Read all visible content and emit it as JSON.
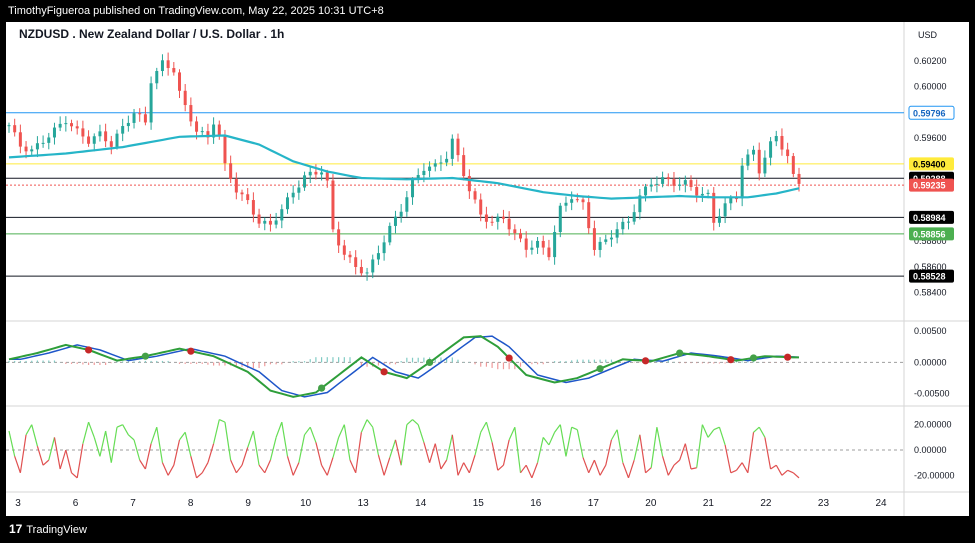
{
  "header": {
    "text": "TimothyFigueroa published on TradingView.com, May 22, 2025 10:31 UTC+8"
  },
  "footer": {
    "logo": "17",
    "brand": "TradingView"
  },
  "chart_data": {
    "type": "candlestick",
    "title": "NZDUSD . New Zealand Dollar / U.S. Dollar . 1h",
    "currency": "USD",
    "x_labels": [
      "3",
      "6",
      "7",
      "8",
      "9",
      "10",
      "13",
      "14",
      "15",
      "16",
      "17",
      "20",
      "21",
      "22",
      "23",
      "24"
    ],
    "price_axis": {
      "min": 0.5825,
      "max": 0.6033,
      "ticks": [
        "0.60200",
        "0.60000",
        "0.59600",
        "0.58800",
        "0.58600",
        "0.58400"
      ]
    },
    "price_path": [
      [
        0,
        0.597
      ],
      [
        2,
        0.5954
      ],
      [
        4,
        0.595
      ],
      [
        7,
        0.5962
      ],
      [
        10,
        0.5974
      ],
      [
        12,
        0.5965
      ],
      [
        14,
        0.5958
      ],
      [
        16,
        0.5963
      ],
      [
        18,
        0.5955
      ],
      [
        20,
        0.5968
      ],
      [
        22,
        0.598
      ],
      [
        24,
        0.5972
      ],
      [
        25,
        0.6005
      ],
      [
        27,
        0.6018
      ],
      [
        29,
        0.6013
      ],
      [
        30,
        0.5995
      ],
      [
        31,
        0.5984
      ],
      [
        33,
        0.5966
      ],
      [
        35,
        0.596
      ],
      [
        36,
        0.5973
      ],
      [
        37,
        0.5962
      ],
      [
        38,
        0.5938
      ],
      [
        40,
        0.592
      ],
      [
        42,
        0.591
      ],
      [
        44,
        0.5895
      ],
      [
        46,
        0.5892
      ],
      [
        48,
        0.5905
      ],
      [
        50,
        0.5918
      ],
      [
        52,
        0.593
      ],
      [
        55,
        0.5935
      ],
      [
        56,
        0.5925
      ],
      [
        57,
        0.5888
      ],
      [
        59,
        0.587
      ],
      [
        61,
        0.586
      ],
      [
        63,
        0.5855
      ],
      [
        65,
        0.5872
      ],
      [
        67,
        0.589
      ],
      [
        69,
        0.5905
      ],
      [
        71,
        0.5925
      ],
      [
        73,
        0.5937
      ],
      [
        75,
        0.5938
      ],
      [
        77,
        0.5946
      ],
      [
        78,
        0.5958
      ],
      [
        79,
        0.5945
      ],
      [
        81,
        0.592
      ],
      [
        83,
        0.59
      ],
      [
        85,
        0.5895
      ],
      [
        87,
        0.5898
      ],
      [
        89,
        0.5885
      ],
      [
        91,
        0.5875
      ],
      [
        93,
        0.5878
      ],
      [
        95,
        0.587
      ],
      [
        97,
        0.5905
      ],
      [
        99,
        0.5915
      ],
      [
        101,
        0.5908
      ],
      [
        103,
        0.5875
      ],
      [
        105,
        0.588
      ],
      [
        107,
        0.589
      ],
      [
        109,
        0.5895
      ],
      [
        111,
        0.5915
      ],
      [
        113,
        0.5925
      ],
      [
        115,
        0.5928
      ],
      [
        117,
        0.5925
      ],
      [
        119,
        0.5925
      ],
      [
        121,
        0.5918
      ],
      [
        123,
        0.5915
      ],
      [
        124,
        0.5895
      ],
      [
        126,
        0.5908
      ],
      [
        128,
        0.5915
      ],
      [
        129,
        0.594
      ],
      [
        131,
        0.595
      ],
      [
        132,
        0.5935
      ],
      [
        134,
        0.5955
      ],
      [
        135,
        0.5962
      ],
      [
        137,
        0.5945
      ],
      [
        138,
        0.593
      ],
      [
        139,
        0.5926
      ]
    ],
    "total_bars": 140,
    "ma_path": [
      [
        0,
        0.5945
      ],
      [
        10,
        0.5948
      ],
      [
        20,
        0.5953
      ],
      [
        30,
        0.5961
      ],
      [
        38,
        0.5962
      ],
      [
        44,
        0.5955
      ],
      [
        50,
        0.5942
      ],
      [
        56,
        0.5934
      ],
      [
        62,
        0.5929
      ],
      [
        70,
        0.5928
      ],
      [
        78,
        0.5929
      ],
      [
        86,
        0.5925
      ],
      [
        94,
        0.5918
      ],
      [
        100,
        0.5915
      ],
      [
        106,
        0.5913
      ],
      [
        112,
        0.5914
      ],
      [
        118,
        0.5915
      ],
      [
        124,
        0.5914
      ],
      [
        130,
        0.5914
      ],
      [
        135,
        0.5917
      ],
      [
        139,
        0.5921
      ]
    ],
    "horizontal_levels": [
      {
        "label": "0.59796",
        "value": 0.59796,
        "color": "#2196f3",
        "text_color": "#1565c0",
        "box_fill": "#ffffff"
      },
      {
        "label": "0.59400",
        "value": 0.594,
        "color": "#ffeb3b",
        "text_color": "#000000",
        "box_fill": "#ffeb3b"
      },
      {
        "label": "0.59288",
        "value": 0.59288,
        "color": "#ffffff",
        "text_color": "#ffffff",
        "box_fill": "#000000"
      },
      {
        "label": "0.59235",
        "value": 0.59235,
        "color": "#ef5350",
        "text_color": "#ffffff",
        "box_fill": "#ef5350"
      },
      {
        "label": "0.58984",
        "value": 0.58984,
        "color": "#ffffff",
        "text_color": "#ffffff",
        "box_fill": "#000000"
      },
      {
        "label": "0.58856",
        "value": 0.58856,
        "color": "#4caf50",
        "text_color": "#ffffff",
        "box_fill": "#4caf50"
      },
      {
        "label": "0.58528",
        "value": 0.58528,
        "color": "#ffffff",
        "text_color": "#ffffff",
        "box_fill": "#000000"
      }
    ],
    "macd": {
      "ticks": [
        "0.00500",
        "0.00000",
        "-0.00500"
      ],
      "range": [
        -0.006,
        0.0055
      ],
      "path": [
        [
          0,
          0.0005
        ],
        [
          5,
          0.0015
        ],
        [
          10,
          0.0028
        ],
        [
          14,
          0.002
        ],
        [
          19,
          0.0003
        ],
        [
          24,
          0.001
        ],
        [
          30,
          0.0022
        ],
        [
          36,
          0.001
        ],
        [
          42,
          -0.0015
        ],
        [
          46,
          -0.0045
        ],
        [
          50,
          -0.0055
        ],
        [
          54,
          -0.0048
        ],
        [
          58,
          -0.002
        ],
        [
          62,
          0.0008
        ],
        [
          66,
          -0.0015
        ],
        [
          70,
          -0.0025
        ],
        [
          74,
          0.0
        ],
        [
          80,
          0.004
        ],
        [
          83,
          0.0042
        ],
        [
          86,
          0.0025
        ],
        [
          91,
          -0.002
        ],
        [
          96,
          -0.0032
        ],
        [
          100,
          -0.0025
        ],
        [
          104,
          -0.001
        ],
        [
          108,
          0.0005
        ],
        [
          113,
          0.0002
        ],
        [
          118,
          0.0015
        ],
        [
          123,
          0.001
        ],
        [
          128,
          0.0003
        ],
        [
          133,
          0.001
        ],
        [
          138,
          0.0008
        ]
      ],
      "dots": [
        {
          "i": 14,
          "c": "#c62828"
        },
        {
          "i": 24,
          "c": "#43a047"
        },
        {
          "i": 32,
          "c": "#c62828"
        },
        {
          "i": 55,
          "c": "#43a047"
        },
        {
          "i": 66,
          "c": "#c62828"
        },
        {
          "i": 74,
          "c": "#43a047"
        },
        {
          "i": 88,
          "c": "#c62828"
        },
        {
          "i": 104,
          "c": "#43a047"
        },
        {
          "i": 112,
          "c": "#c62828"
        },
        {
          "i": 118,
          "c": "#43a047"
        },
        {
          "i": 127,
          "c": "#c62828"
        },
        {
          "i": 131,
          "c": "#43a047"
        },
        {
          "i": 137,
          "c": "#c62828"
        }
      ]
    },
    "oscillator": {
      "ticks": [
        "20.00000",
        "0.00000",
        "-20.00000"
      ],
      "range": [
        -30,
        30
      ],
      "values": [
        15,
        -5,
        -18,
        12,
        20,
        3,
        -12,
        -8,
        10,
        -15,
        0,
        -18,
        -22,
        5,
        22,
        10,
        -5,
        15,
        -10,
        18,
        20,
        12,
        8,
        -8,
        -15,
        5,
        18,
        -10,
        -20,
        -12,
        8,
        14,
        -5,
        -22,
        -18,
        -10,
        5,
        24,
        22,
        -8,
        -18,
        -12,
        2,
        15,
        -12,
        -18,
        -8,
        10,
        22,
        -5,
        -20,
        -10,
        12,
        18,
        6,
        -12,
        -20,
        -6,
        10,
        20,
        -8,
        -18,
        14,
        24,
        18,
        -4,
        -20,
        -6,
        8,
        -12,
        20,
        24,
        20,
        6,
        -10,
        5,
        -15,
        -8,
        12,
        -20,
        -10,
        -18,
        -4,
        14,
        22,
        6,
        -16,
        -12,
        8,
        18,
        -18,
        -12,
        -22,
        -10,
        10,
        4,
        14,
        20,
        -5,
        18,
        16,
        -6,
        -18,
        -8,
        -20,
        -12,
        8,
        16,
        -10,
        -22,
        -8,
        12,
        -18,
        -14,
        18,
        -5,
        -20,
        -12,
        -8,
        5,
        -15,
        -14,
        20,
        10,
        16,
        18,
        4,
        -18,
        -16,
        -10,
        -18,
        14,
        18,
        10,
        -15,
        -12,
        -20,
        -16,
        -18,
        -22
      ]
    }
  }
}
